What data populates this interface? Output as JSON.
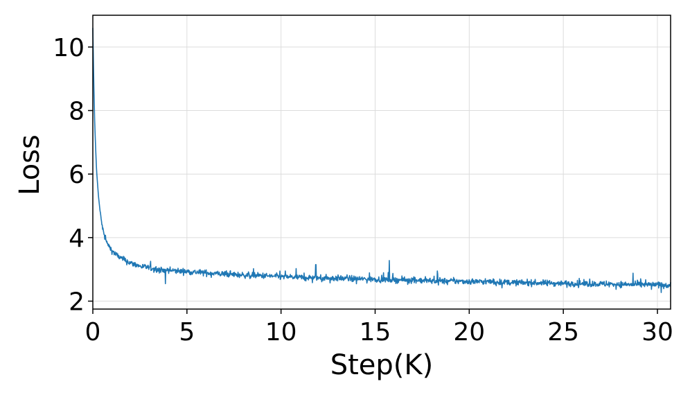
{
  "chart_data": {
    "type": "line",
    "xlabel": "Step(K)",
    "ylabel": "Loss",
    "xlim": [
      0,
      30.7
    ],
    "ylim": [
      1.75,
      11.0
    ],
    "xticks": [
      0,
      5,
      10,
      15,
      20,
      25,
      30
    ],
    "yticks": [
      2,
      4,
      6,
      8,
      10
    ],
    "grid": true,
    "legend": "none",
    "series": [
      {
        "color": "#1f77b4",
        "x": [
          0,
          0.05,
          0.1,
          0.15,
          0.2,
          0.3,
          0.4,
          0.5,
          0.6,
          0.7,
          0.8,
          1.0,
          1.2,
          1.5,
          1.8,
          2.0,
          2.5,
          3.0,
          3.5,
          4.0,
          5.0,
          6.0,
          7.0,
          8.0,
          9.0,
          10.0,
          11.0,
          12.0,
          13.0,
          14.0,
          15.0,
          16.0,
          17.0,
          18.0,
          19.0,
          20.0,
          21.0,
          22.0,
          23.0,
          24.0,
          25.0,
          26.0,
          27.0,
          28.0,
          29.0,
          30.0,
          30.7
        ],
        "y": [
          10.6,
          8.9,
          7.6,
          6.8,
          6.1,
          5.3,
          4.75,
          4.35,
          4.08,
          3.9,
          3.78,
          3.6,
          3.48,
          3.35,
          3.25,
          3.2,
          3.1,
          3.05,
          3.0,
          2.97,
          2.93,
          2.89,
          2.85,
          2.82,
          2.8,
          2.77,
          2.75,
          2.73,
          2.72,
          2.7,
          2.69,
          2.67,
          2.66,
          2.64,
          2.63,
          2.62,
          2.61,
          2.59,
          2.58,
          2.57,
          2.56,
          2.55,
          2.54,
          2.53,
          2.52,
          2.51,
          2.5
        ],
        "noise": 0.09,
        "spikes": [
          {
            "x": 3.85,
            "y": 2.55
          },
          {
            "x": 11.85,
            "y": 3.15
          },
          {
            "x": 15.75,
            "y": 3.28
          },
          {
            "x": 18.3,
            "y": 2.95
          },
          {
            "x": 28.7,
            "y": 2.88
          }
        ]
      }
    ]
  }
}
